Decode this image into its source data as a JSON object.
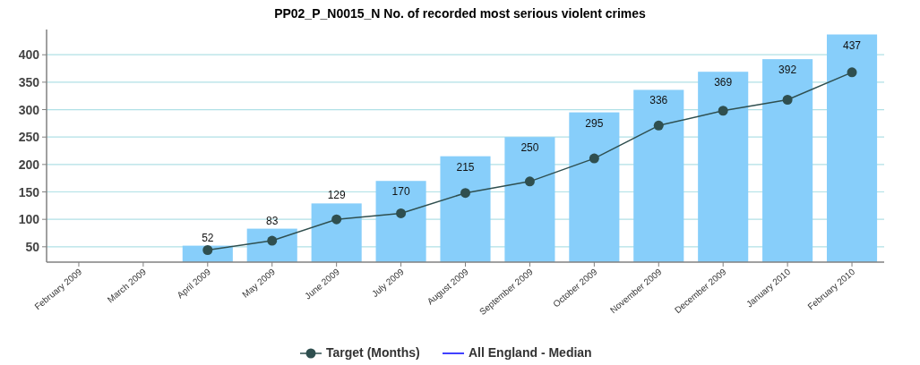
{
  "chart_data": {
    "type": "bar",
    "title": "PP02_P_N0015_N No. of recorded most serious violent crimes",
    "categories": [
      "February 2009",
      "March 2009",
      "April 2009",
      "May 2009",
      "June 2009",
      "July 2009",
      "August 2009",
      "September 2009",
      "October 2009",
      "November 2009",
      "December 2009",
      "January 2010",
      "February 2010"
    ],
    "series": [
      {
        "color": "#87cefa",
        "values": [
          null,
          null,
          52,
          83,
          129,
          170,
          215,
          250,
          295,
          336,
          369,
          392,
          437
        ],
        "value_labels": [
          null,
          null,
          "52",
          "83",
          "129",
          "170",
          "215",
          "250",
          "295",
          "336",
          "369",
          "392",
          "437"
        ]
      },
      {
        "type": "line",
        "name": "Target (Months)",
        "color": "#2f4f4f",
        "marker": "circle",
        "values": [
          null,
          null,
          44,
          61,
          100,
          111,
          148,
          169,
          211,
          271,
          298,
          318,
          368
        ]
      },
      {
        "type": "line",
        "name": "All England - Median",
        "color": "#0000ff",
        "marker": "none",
        "values": [
          null,
          null,
          null,
          null,
          null,
          null,
          null,
          null,
          null,
          null,
          null,
          null,
          null
        ]
      }
    ],
    "ylim": [
      22,
      446
    ],
    "yticks": [
      50,
      100,
      150,
      200,
      250,
      300,
      350,
      400
    ],
    "grid": "y",
    "legend": "bottom"
  }
}
